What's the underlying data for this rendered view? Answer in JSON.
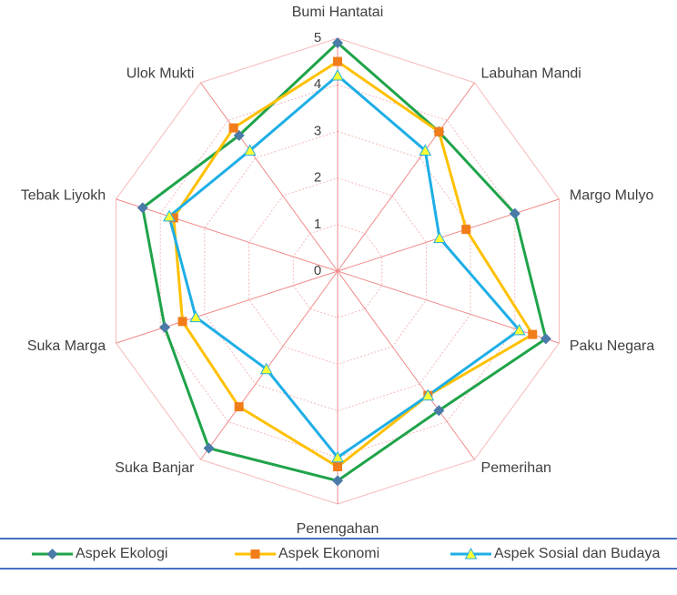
{
  "chart_data": {
    "type": "radar",
    "categories": [
      "Bumi Hantatai",
      "Labuhan Mandi",
      "Margo Mulyo",
      "Paku Negara",
      "Pemerihan",
      "Penengahan",
      "Suka Banjar",
      "Suka Marga",
      "Tebak Liyokh",
      "Ulok Mukti"
    ],
    "ylim": [
      0,
      5
    ],
    "yticks": [
      0,
      1,
      2,
      3,
      4,
      5
    ],
    "grid": true,
    "legend": "bottom",
    "series": [
      {
        "name": "Aspek Ekologi",
        "color": "#1fa34a",
        "marker_color": "#4a7aa8",
        "marker": "diamond",
        "values": [
          4.9,
          3.7,
          4.0,
          4.7,
          3.7,
          4.5,
          4.7,
          3.9,
          4.4,
          3.6
        ]
      },
      {
        "name": "Aspek Ekonomi",
        "color": "#ffc000",
        "marker_color": "#f07d1a",
        "marker": "square",
        "values": [
          4.5,
          3.7,
          2.9,
          4.4,
          3.3,
          4.2,
          3.6,
          3.5,
          3.7,
          3.8
        ]
      },
      {
        "name": "Aspek Sosial dan Budaya",
        "color": "#1eaee6",
        "marker_color": "#ffff33",
        "marker": "triangle",
        "values": [
          4.2,
          3.2,
          2.3,
          4.1,
          3.3,
          4.0,
          2.6,
          3.2,
          3.8,
          3.2
        ]
      }
    ]
  }
}
